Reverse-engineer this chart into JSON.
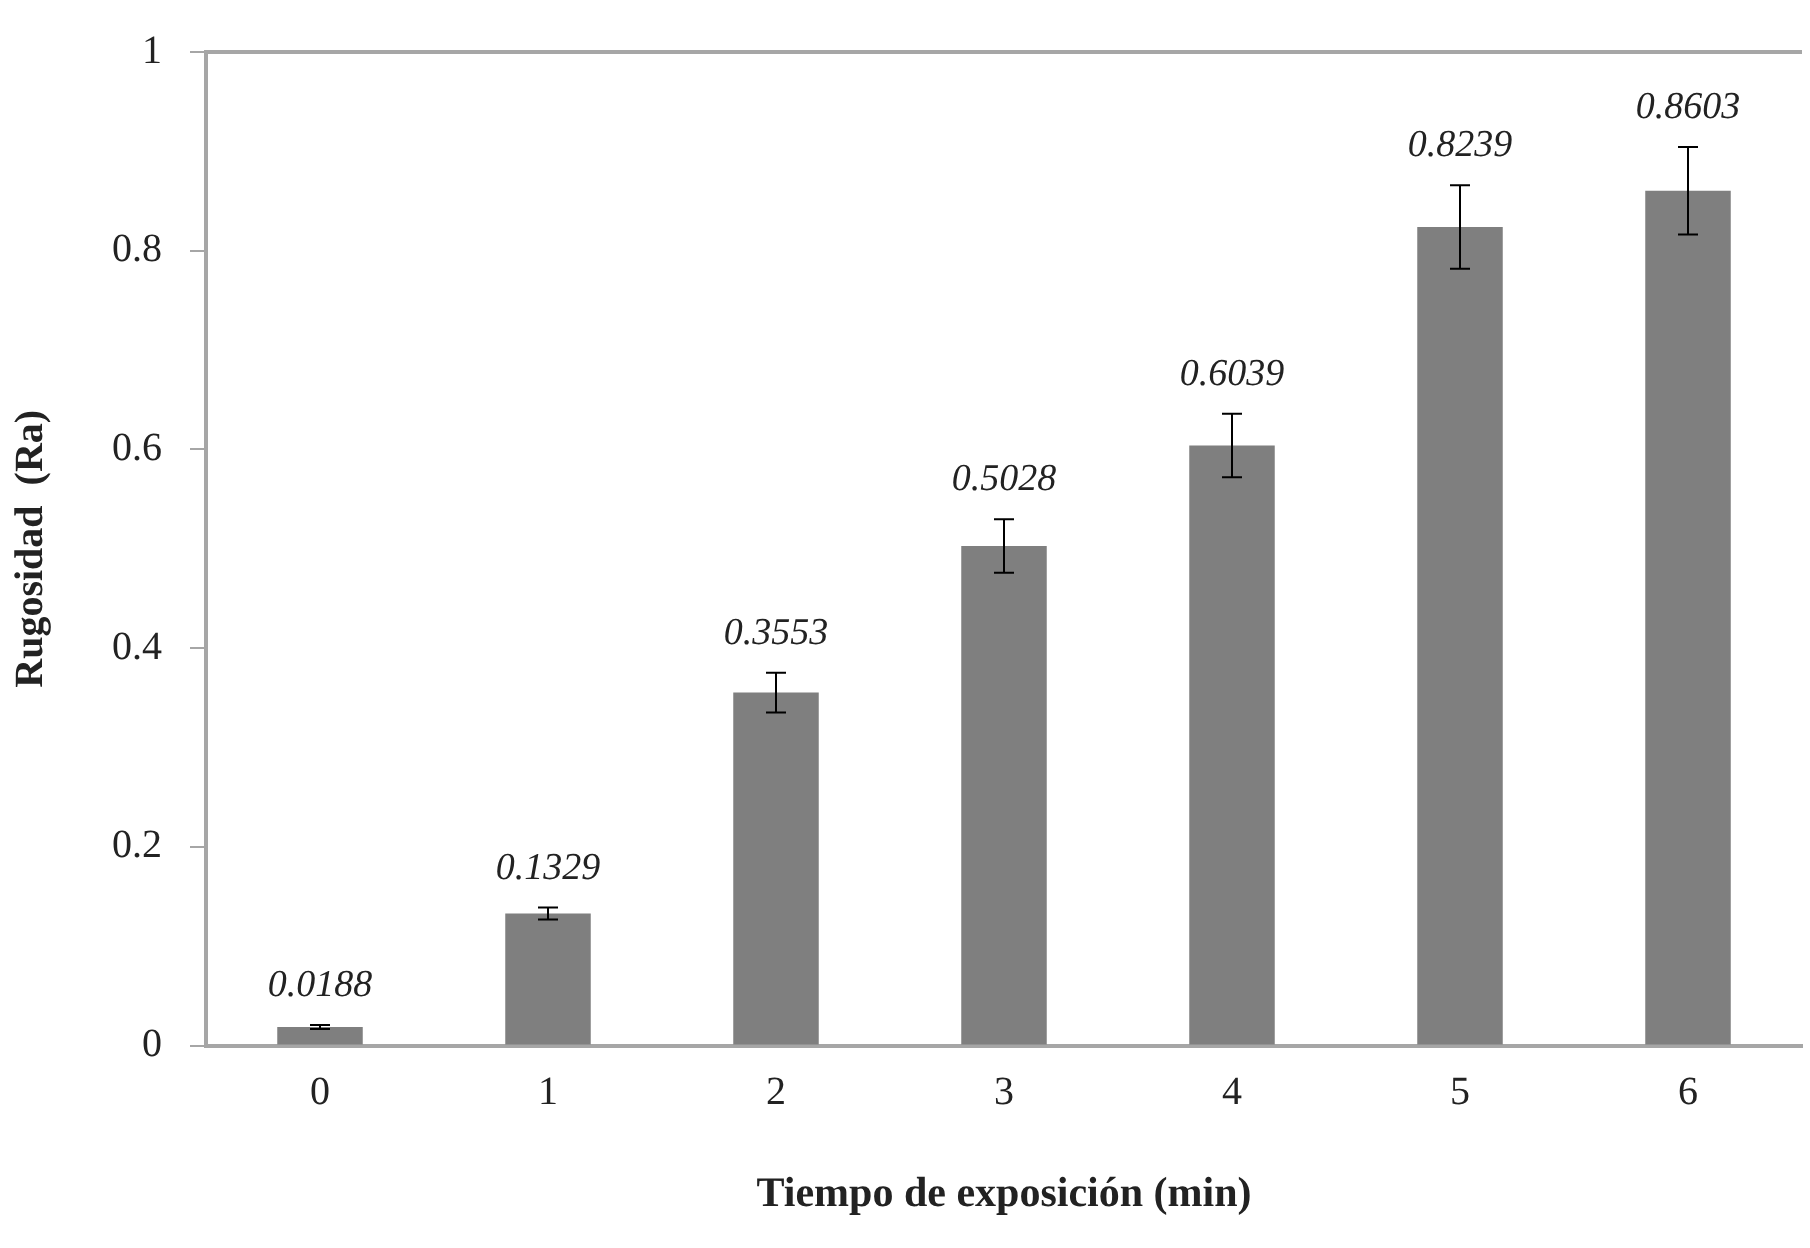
{
  "chart_data": {
    "type": "bar",
    "xlabel": "Tiempo de exposición (min)",
    "ylabel": "Rugosidad  (Ra)",
    "categories": [
      "0",
      "1",
      "2",
      "3",
      "4",
      "5",
      "6"
    ],
    "values": [
      0.0188,
      0.1329,
      0.3553,
      0.5028,
      0.6039,
      0.8239,
      0.8603
    ],
    "errors": [
      0.002,
      0.006,
      0.02,
      0.027,
      0.032,
      0.042,
      0.044
    ],
    "color": "#7f7f7f",
    "ylim": [
      0,
      1
    ],
    "yticks": [
      0,
      0.2,
      0.4,
      0.6,
      0.8,
      1
    ],
    "data_labels": true,
    "grid": false,
    "legend": false
  }
}
